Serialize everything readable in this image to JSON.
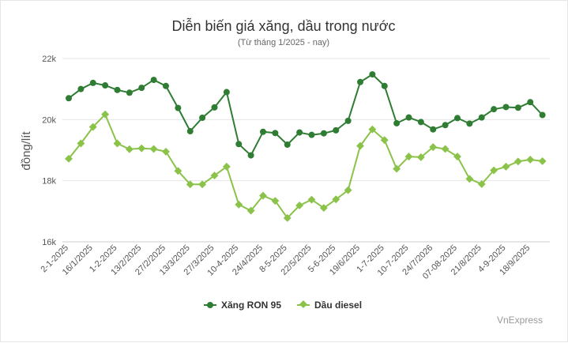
{
  "chart_data": {
    "type": "line",
    "title": "Diễn biến giá xăng, dầu trong nước",
    "subtitle": "(Từ tháng 1/2025 - nay)",
    "ylabel": "đồng/lít",
    "ylim": [
      16000,
      22000
    ],
    "yticks": [
      16000,
      18000,
      20000,
      22000
    ],
    "ytick_labels": [
      "16k",
      "18k",
      "20k",
      "22k"
    ],
    "x_labels": [
      "2-1-2025",
      "16/1/2025",
      "1-2-2025",
      "13/2/2025",
      "27/2/2025",
      "13/3/2025",
      "27/3/2025",
      "10-4-2025",
      "24/4/2025",
      "8-5-2025",
      "22/5/2025",
      "5-6-2025",
      "19/6/2025",
      "1-7-2025",
      "10-7-2025",
      "24/7/2026",
      "07-08-2025",
      "21/8/2025",
      "4-9-2025",
      "18/9/2025"
    ],
    "point_count": 40,
    "grid": true,
    "legend_position": "bottom",
    "series": [
      {
        "name": "Xăng RON 95",
        "color": "#2e7d32",
        "values": [
          20700,
          21000,
          21200,
          21120,
          20970,
          20880,
          21040,
          21300,
          21100,
          20380,
          19620,
          20060,
          20400,
          20900,
          19200,
          18830,
          19600,
          19560,
          19180,
          19580,
          19500,
          19550,
          19650,
          19960,
          21230,
          21480,
          21100,
          19880,
          20070,
          19920,
          19680,
          19820,
          20050,
          19870,
          20070,
          20340,
          20410,
          20390,
          20570,
          20150
        ]
      },
      {
        "name": "Dầu diesel",
        "color": "#8bc34a",
        "values": [
          18720,
          19220,
          19760,
          20170,
          19220,
          19030,
          19060,
          19040,
          18950,
          18320,
          17880,
          17880,
          18170,
          18460,
          17220,
          17020,
          17510,
          17340,
          16780,
          17190,
          17380,
          17110,
          17390,
          17690,
          19140,
          19680,
          19330,
          18390,
          18790,
          18770,
          19100,
          19040,
          18790,
          18060,
          17890,
          18340,
          18460,
          18630,
          18690,
          18640
        ]
      }
    ]
  },
  "credit": "VnExpress"
}
